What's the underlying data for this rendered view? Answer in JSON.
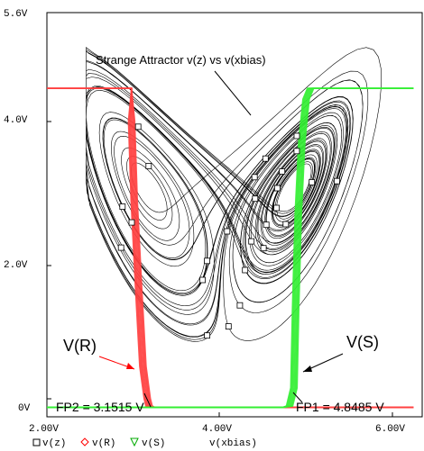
{
  "chart_data": {
    "type": "line",
    "title": "Strange Attractor v(z) vs v(xbias)",
    "xlabel": "v(xbias)",
    "x_ticks": [
      "2.00V",
      "4.00V",
      "6.00V"
    ],
    "y_ticks": [
      "0V",
      "2.0V",
      "4.0V",
      "5.6V"
    ],
    "xlim": [
      2.0,
      6.3
    ],
    "ylim": [
      0.0,
      5.6
    ],
    "legend": [
      {
        "marker": "square",
        "label": "v(z)",
        "color": "#000000"
      },
      {
        "marker": "diamond",
        "label": "v(R)",
        "color": "#ff0000"
      },
      {
        "marker": "triangle",
        "label": "v(S)",
        "color": "#00cc00"
      }
    ],
    "series": [
      {
        "name": "v(z)",
        "color": "#000000",
        "style": "attractor",
        "fixed_points": [
          3.1515,
          4.8485
        ],
        "x_range": [
          2.45,
          6.2
        ],
        "y_range": [
          0.6,
          5.3
        ]
      },
      {
        "name": "v(R)",
        "color": "#ff4040",
        "x": [
          2.0,
          2.9,
          2.97,
          2.97,
          3.0,
          3.05,
          3.1,
          3.15,
          3.17,
          3.2,
          3.22,
          3.3,
          6.2
        ],
        "y": [
          4.55,
          4.55,
          4.55,
          4.1,
          3.0,
          1.8,
          0.7,
          0.25,
          0.15,
          0.13,
          0.13,
          0.13,
          0.13
        ]
      },
      {
        "name": "v(S)",
        "color": "#33ee33",
        "x": [
          2.0,
          4.7,
          4.78,
          4.83,
          4.85,
          4.88,
          4.92,
          4.97,
          5.02,
          5.05,
          5.08,
          6.2
        ],
        "y": [
          0.13,
          0.13,
          0.15,
          0.4,
          1.5,
          2.8,
          3.8,
          4.4,
          4.55,
          4.55,
          4.55,
          4.55
        ]
      }
    ],
    "annotations": {
      "attractor_label": "Strange Attractor v(z) vs v(xbias)",
      "vr_label": "V(R)",
      "vs_label": "V(S)",
      "fp2_label": "FP2 = 3.1515 V",
      "fp1_label": "FP1 = 4.8485 V"
    },
    "grid": false
  }
}
